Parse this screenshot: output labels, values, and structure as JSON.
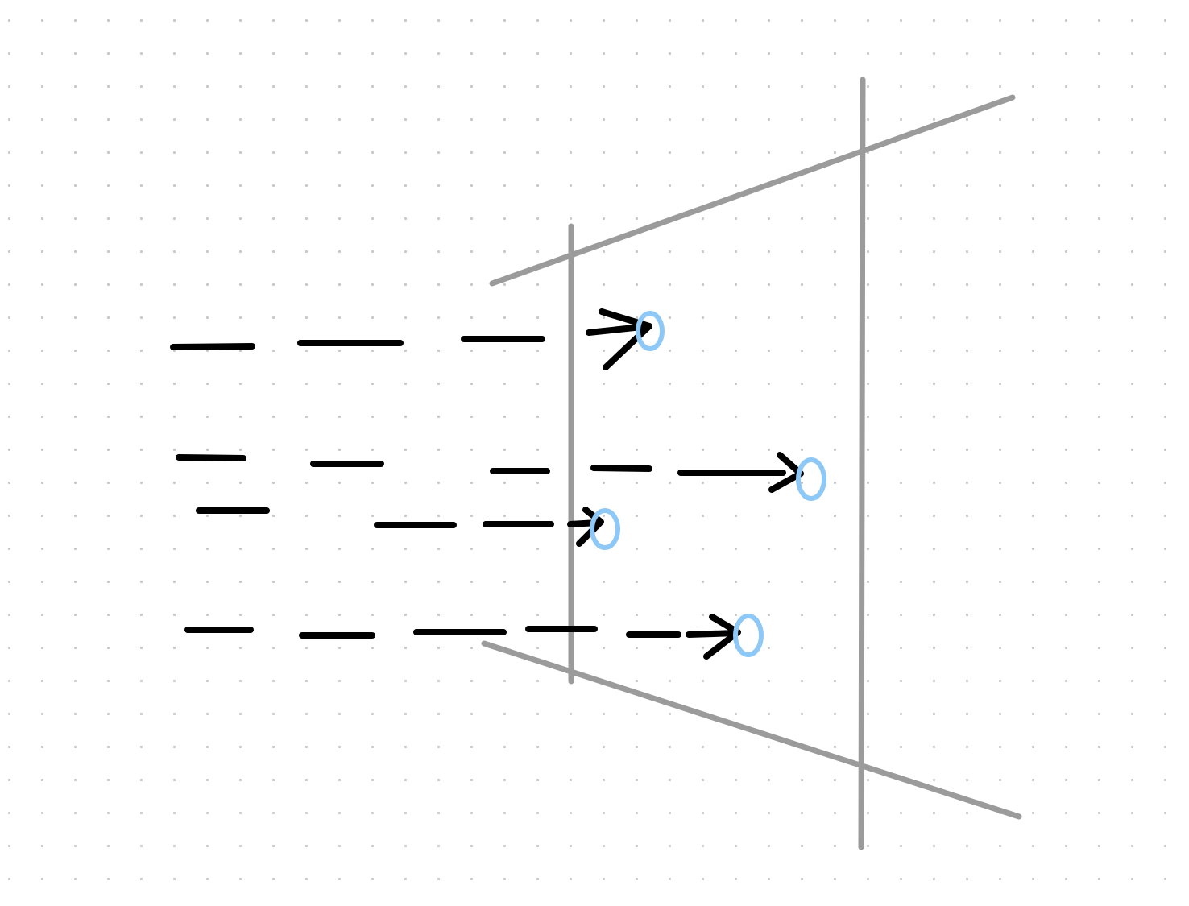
{
  "canvas": {
    "background": "#ffffff",
    "grid_dot_color": "#c9c9c9"
  },
  "colors": {
    "frame": "#9b9b9b",
    "arrow": "#000000",
    "target": "#8ec8f6"
  },
  "icons": [
    "arrowhead-icon",
    "target-circle-icon"
  ]
}
